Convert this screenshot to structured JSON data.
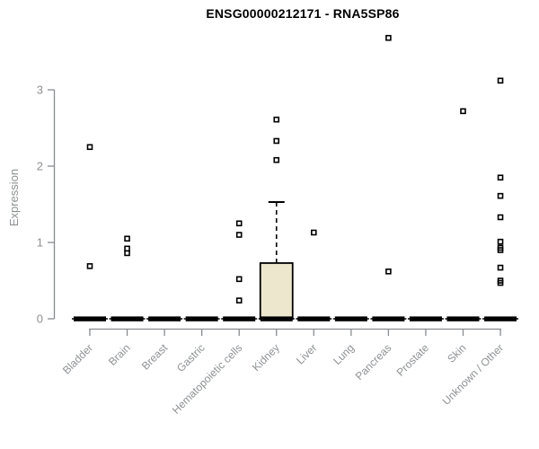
{
  "chart_data": {
    "type": "boxplot",
    "title": "ENSG00000212171 - RNA5SP86",
    "ylabel": "Expression",
    "yticks": [
      "0",
      "1",
      "2",
      "3"
    ],
    "ylim": [
      0,
      3
    ],
    "grid": false,
    "legend": null,
    "point_marker": "open-square",
    "categories": [
      "Bladder",
      "Brain",
      "Breast",
      "Gastric",
      "Hematopoietic cells",
      "Kidney",
      "Liver",
      "Lung",
      "Pancreas",
      "Prostate",
      "Skin",
      "Unknown / Other"
    ],
    "boxes": [
      {
        "category": "Bladder",
        "whisker_low": 0,
        "q1": 0,
        "median": 0,
        "q3": 0,
        "whisker_high": 0,
        "outliers": [
          2.25,
          0.69
        ]
      },
      {
        "category": "Brain",
        "whisker_low": 0,
        "q1": 0,
        "median": 0,
        "q3": 0,
        "whisker_high": 0,
        "outliers": [
          1.05,
          0.92,
          0.86
        ]
      },
      {
        "category": "Breast",
        "whisker_low": 0,
        "q1": 0,
        "median": 0,
        "q3": 0,
        "whisker_high": 0,
        "outliers": []
      },
      {
        "category": "Gastric",
        "whisker_low": 0,
        "q1": 0,
        "median": 0,
        "q3": 0,
        "whisker_high": 0,
        "outliers": []
      },
      {
        "category": "Hematopoietic cells",
        "whisker_low": 0,
        "q1": 0,
        "median": 0,
        "q3": 0,
        "whisker_high": 0,
        "outliers": [
          1.25,
          1.1,
          0.52,
          0.24
        ]
      },
      {
        "category": "Kidney",
        "whisker_low": 0,
        "q1": 0,
        "median": 0,
        "q3": 0.73,
        "whisker_high": 1.53,
        "outliers": [
          2.61,
          2.33,
          2.08
        ]
      },
      {
        "category": "Liver",
        "whisker_low": 0,
        "q1": 0,
        "median": 0,
        "q3": 0,
        "whisker_high": 0,
        "outliers": [
          1.13
        ]
      },
      {
        "category": "Lung",
        "whisker_low": 0,
        "q1": 0,
        "median": 0,
        "q3": 0,
        "whisker_high": 0,
        "outliers": []
      },
      {
        "category": "Pancreas",
        "whisker_low": 0,
        "q1": 0,
        "median": 0,
        "q3": 0,
        "whisker_high": 0,
        "outliers": [
          3.68,
          0.62
        ]
      },
      {
        "category": "Prostate",
        "whisker_low": 0,
        "q1": 0,
        "median": 0,
        "q3": 0,
        "whisker_high": 0,
        "outliers": []
      },
      {
        "category": "Skin",
        "whisker_low": 0,
        "q1": 0,
        "median": 0,
        "q3": 0,
        "whisker_high": 0,
        "outliers": [
          2.72
        ]
      },
      {
        "category": "Unknown / Other",
        "whisker_low": 0,
        "q1": 0,
        "median": 0,
        "q3": 0,
        "whisker_high": 0,
        "outliers": [
          3.12,
          1.85,
          1.61,
          1.33,
          1.01,
          0.93,
          0.9,
          0.67,
          0.5,
          0.47
        ]
      }
    ],
    "colors": {
      "box_fill": "#ECE7CD",
      "box_border": "#000000",
      "median": "#000000",
      "outlier": "#000000",
      "axis": "#898C8E",
      "tick_label": "#8E9193",
      "title": "#000000",
      "background": "#FFFFFF"
    }
  }
}
